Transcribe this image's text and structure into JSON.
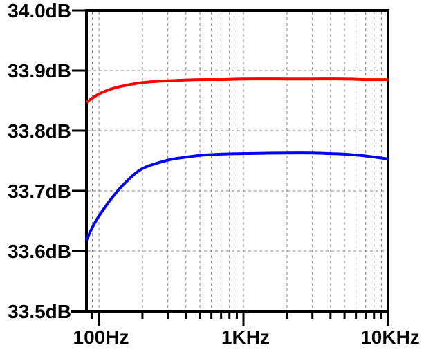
{
  "chart_data": {
    "type": "line",
    "title": "",
    "xlabel": "",
    "ylabel": "",
    "x_scale": "log",
    "x_range_hz": [
      82,
      10000
    ],
    "y_range_db": [
      33.5,
      34.0
    ],
    "background_color": "#ffffff",
    "axis_color": "#000000",
    "grid": {
      "visible": true,
      "style": "dashed",
      "color": "#808080",
      "vertical_hz": [
        90,
        100,
        200,
        300,
        400,
        500,
        600,
        700,
        800,
        900,
        1000,
        2000,
        3000,
        4000,
        5000,
        6000,
        7000,
        8000,
        9000
      ],
      "horizontal_db": [
        33.6,
        33.7,
        33.8,
        33.9
      ]
    },
    "y_ticks": [
      {
        "value": 34.0,
        "label": "34.0dB"
      },
      {
        "value": 33.9,
        "label": "33.9dB"
      },
      {
        "value": 33.8,
        "label": "33.8dB"
      },
      {
        "value": 33.7,
        "label": "33.7dB"
      },
      {
        "value": 33.6,
        "label": "33.6dB"
      },
      {
        "value": 33.5,
        "label": "33.5dB"
      }
    ],
    "x_major_ticks": [
      {
        "value": 100,
        "label": "100Hz"
      },
      {
        "value": 1000,
        "label": "1KHz"
      },
      {
        "value": 10000,
        "label": "10KHz"
      }
    ],
    "x_minor_ticks": [
      90,
      100,
      200,
      300,
      400,
      500,
      600,
      700,
      800,
      900,
      1000,
      2000,
      3000,
      4000,
      5000,
      6000,
      7000,
      8000,
      9000,
      10000
    ],
    "legend": "none",
    "series": [
      {
        "name": "red-trace",
        "color": "#ff0000",
        "freq_hz": [
          82,
          90,
          100,
          120,
          150,
          200,
          300,
          500,
          700,
          1000,
          2000,
          3000,
          5000,
          7000,
          10000
        ],
        "db": [
          33.847,
          33.854,
          33.861,
          33.869,
          33.875,
          33.88,
          33.883,
          33.885,
          33.885,
          33.886,
          33.886,
          33.886,
          33.886,
          33.885,
          33.885
        ]
      },
      {
        "name": "blue-trace",
        "color": "#0000ff",
        "freq_hz": [
          82,
          90,
          100,
          120,
          150,
          200,
          300,
          400,
          500,
          700,
          1000,
          2000,
          3000,
          4000,
          5000,
          7000,
          10000
        ],
        "db": [
          33.618,
          33.639,
          33.658,
          33.685,
          33.712,
          33.737,
          33.751,
          33.756,
          33.759,
          33.761,
          33.762,
          33.763,
          33.763,
          33.762,
          33.761,
          33.758,
          33.753
        ]
      }
    ]
  }
}
